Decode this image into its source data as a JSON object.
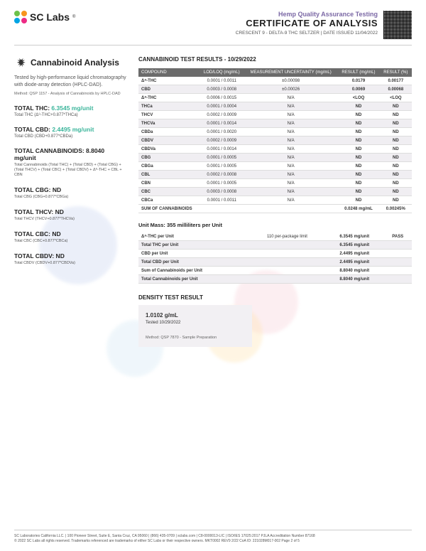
{
  "header": {
    "brand": "SC Labs",
    "hemp": "Hemp Quality Assurance Testing",
    "coa": "CERTIFICATE OF ANALYSIS",
    "sub": "CRESCENT 9 - DELTA-9 THC SELTZER | DATE ISSUED 11/04/2022"
  },
  "left": {
    "title": "Cannabinoid Analysis",
    "desc": "Tested by high-performance liquid chromatography with diode-array detection (HPLC-DAD).",
    "method": "Method: QSP 1157 - Analysis of Cannabinoids by HPLC-DAD",
    "totals": [
      {
        "label": "TOTAL THC:",
        "val": "6.3545 mg/unit",
        "sub": "Total THC (Δ⁹-THC+0.877*THCa)"
      },
      {
        "label": "TOTAL CBD:",
        "val": "2.4495 mg/unit",
        "sub": "Total CBD (CBD+0.877*CBDa)"
      },
      {
        "label": "TOTAL CANNABINOIDS: 8.8040 mg/unit",
        "val": "",
        "sub": "Total Cannabinoids (Total THC) + (Total CBD) + (Total CBG) + (Total THCV) + (Total CBC) + (Total CBDV) + Δ⁸-THC + CBL + CBN"
      },
      {
        "label": "TOTAL CBG: ND",
        "val": "",
        "sub": "Total CBG (CBG+0.877*CBGa)"
      },
      {
        "label": "TOTAL THCV: ND",
        "val": "",
        "sub": "Total THCV (THCV+0.877*THCVa)"
      },
      {
        "label": "TOTAL CBC: ND",
        "val": "",
        "sub": "Total CBC (CBC+0.877*CBCa)"
      },
      {
        "label": "TOTAL CBDV: ND",
        "val": "",
        "sub": "Total CBDV (CBDV+0.877*CBDVa)"
      }
    ]
  },
  "results": {
    "title": "CANNABINOID TEST RESULTS - 10/29/2022",
    "headers": [
      "COMPOUND",
      "LOD/LOQ (mg/mL)",
      "MEASUREMENT UNCERTAINTY (mg/mL)",
      "RESULT (mg/mL)",
      "RESULT (%)"
    ],
    "rows": [
      [
        "Δ⁹-THC",
        "0.0001 / 0.0011",
        "±0.00098",
        "0.0179",
        "0.00177"
      ],
      [
        "CBD",
        "0.0003 / 0.0008",
        "±0.00026",
        "0.0069",
        "0.00068"
      ],
      [
        "Δ⁸-THC",
        "0.0006 / 0.0015",
        "N/A",
        "<LOQ",
        "<LOQ"
      ],
      [
        "THCa",
        "0.0001 / 0.0004",
        "N/A",
        "ND",
        "ND"
      ],
      [
        "THCV",
        "0.0002 / 0.0009",
        "N/A",
        "ND",
        "ND"
      ],
      [
        "THCVa",
        "0.0001 / 0.0014",
        "N/A",
        "ND",
        "ND"
      ],
      [
        "CBDa",
        "0.0001 / 0.0020",
        "N/A",
        "ND",
        "ND"
      ],
      [
        "CBDV",
        "0.0002 / 0.0009",
        "N/A",
        "ND",
        "ND"
      ],
      [
        "CBDVa",
        "0.0001 / 0.0014",
        "N/A",
        "ND",
        "ND"
      ],
      [
        "CBG",
        "0.0001 / 0.0005",
        "N/A",
        "ND",
        "ND"
      ],
      [
        "CBGa",
        "0.0001 / 0.0005",
        "N/A",
        "ND",
        "ND"
      ],
      [
        "CBL",
        "0.0002 / 0.0008",
        "N/A",
        "ND",
        "ND"
      ],
      [
        "CBN",
        "0.0001 / 0.0005",
        "N/A",
        "ND",
        "ND"
      ],
      [
        "CBC",
        "0.0003 / 0.0008",
        "N/A",
        "ND",
        "ND"
      ],
      [
        "CBCa",
        "0.0001 / 0.0011",
        "N/A",
        "ND",
        "ND"
      ]
    ],
    "sum": [
      "SUM OF CANNABINOIDS",
      "",
      "",
      "0.0248 mg/mL",
      "0.00245%"
    ]
  },
  "unitmass": {
    "title": "Unit Mass: 355 milliliters per Unit",
    "rows": [
      [
        "Δ⁹-THC per Unit",
        "110 per-package limit",
        "6.3545 mg/unit",
        "PASS"
      ],
      [
        "Total THC per Unit",
        "",
        "6.3545 mg/unit",
        ""
      ],
      [
        "CBD per Unit",
        "",
        "2.4495 mg/unit",
        ""
      ],
      [
        "Total CBD per Unit",
        "",
        "2.4495 mg/unit",
        ""
      ],
      [
        "Sum of Cannabinoids per Unit",
        "",
        "8.8040 mg/unit",
        ""
      ],
      [
        "Total Cannabinoids per Unit",
        "",
        "8.8040 mg/unit",
        ""
      ]
    ]
  },
  "density": {
    "title": "DENSITY TEST RESULT",
    "val": "1.0102 g/mL",
    "date": "Tested 10/29/2022",
    "method": "Method: QSP 7870 - Sample Preparation"
  },
  "footer": {
    "line1": "SC Laboratories California LLC. | 100 Pioneer Street, Suite E, Santa Cruz, CA 95060 | (866) 435-0709 | sclabs.com | C8-0000013-LIC | ISO/IES 17025:2017 PJLA Accreditation Number 87168",
    "line2": "© 2022 SC Labs all rights reserved. Trademarks referenced are trademarks of either SC Labs or their respective owners. MKT0002 REV9 2/22     CoA ID: 221028M017-002   Page 2 of 5"
  }
}
